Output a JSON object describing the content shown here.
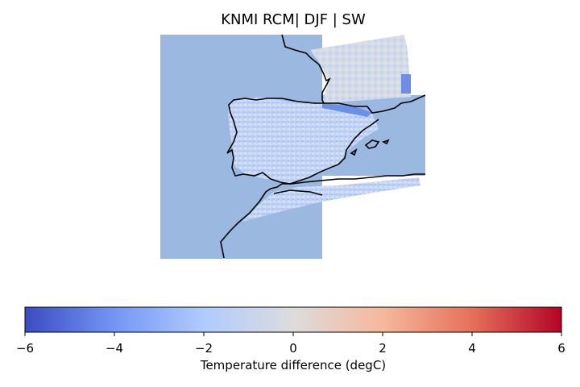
{
  "title": "KNMI RCM| DJF | SW",
  "colorbar": {
    "label": "Temperature difference (degC)",
    "ticks": [
      "−6",
      "−4",
      "−2",
      "0",
      "2",
      "4",
      "6"
    ],
    "range": [
      -6,
      6
    ],
    "colormap": "coolwarm",
    "colors": [
      "#3b4cc0",
      "#7396f5",
      "#b0cbff",
      "#dddcdc",
      "#f6b89c",
      "#e5705a",
      "#b40426"
    ]
  },
  "map": {
    "region": "Iberian Peninsula, SW France, NW Africa",
    "season": "DJF",
    "variable": "SW",
    "ocean_color": "#9bb8e0",
    "coastline_color": "#000000"
  }
}
